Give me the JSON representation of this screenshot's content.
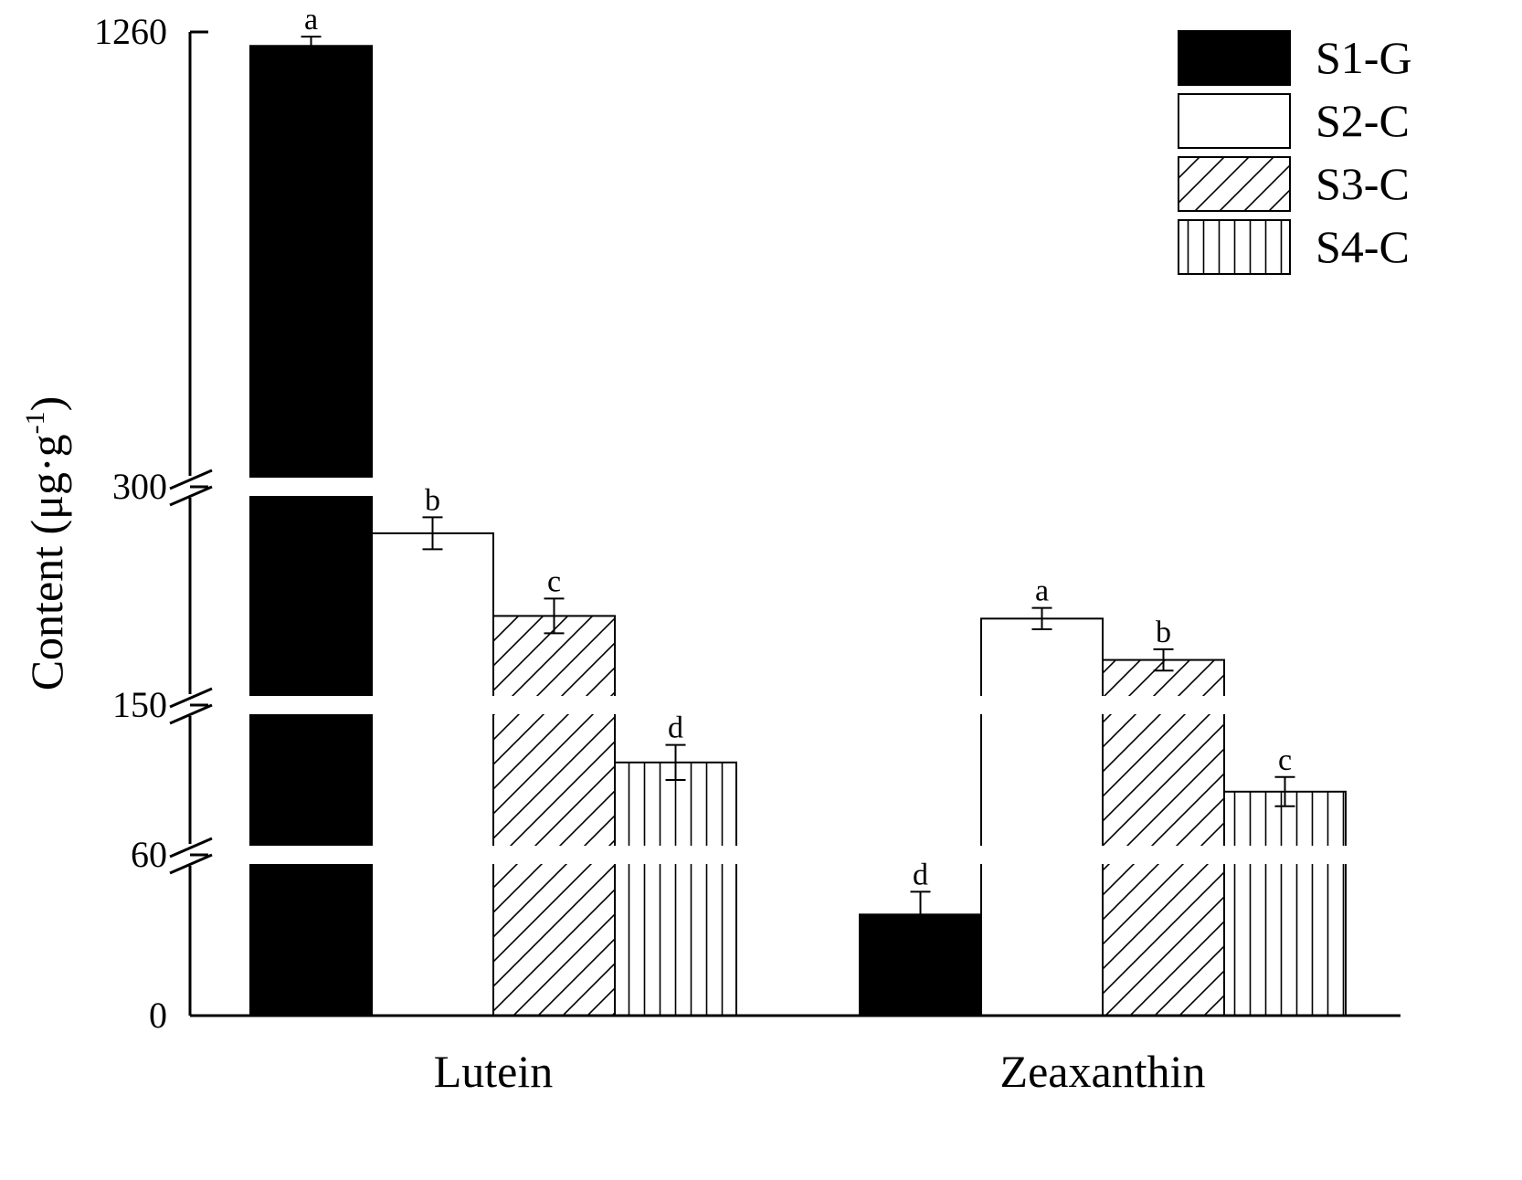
{
  "chart_data": {
    "type": "bar",
    "ylabel": "Content (μg·g-1)",
    "ylabel_main": "Content (μg·g",
    "ylabel_sup": "-1",
    "ylabel_close": ")",
    "y_axis": "broken",
    "y_ticks": [
      "0",
      "60",
      "150",
      "300",
      "1260"
    ],
    "categories": [
      "Lutein",
      "Zeaxanthin"
    ],
    "series": [
      {
        "name": "S1-G",
        "values": [
          1230,
          40
        ],
        "errors": [
          20,
          9
        ],
        "letters": [
          "a",
          "d"
        ],
        "fill": "#000000",
        "pattern": "solid"
      },
      {
        "name": "S2-C",
        "values": [
          272,
          208
        ],
        "errors": [
          12,
          8
        ],
        "letters": [
          "b",
          "a"
        ],
        "fill": "#ffffff",
        "pattern": "none"
      },
      {
        "name": "S3-C",
        "values": [
          210,
          177
        ],
        "errors": [
          13,
          8
        ],
        "letters": [
          "c",
          "b"
        ],
        "fill": "#ffffff",
        "pattern": "diagonal"
      },
      {
        "name": "S4-C",
        "values": [
          117,
          97
        ],
        "errors": [
          12,
          10
        ],
        "letters": [
          "d",
          "c"
        ],
        "fill": "#ffffff",
        "pattern": "vertical"
      }
    ],
    "legend_position": "top-right",
    "grid": false
  }
}
